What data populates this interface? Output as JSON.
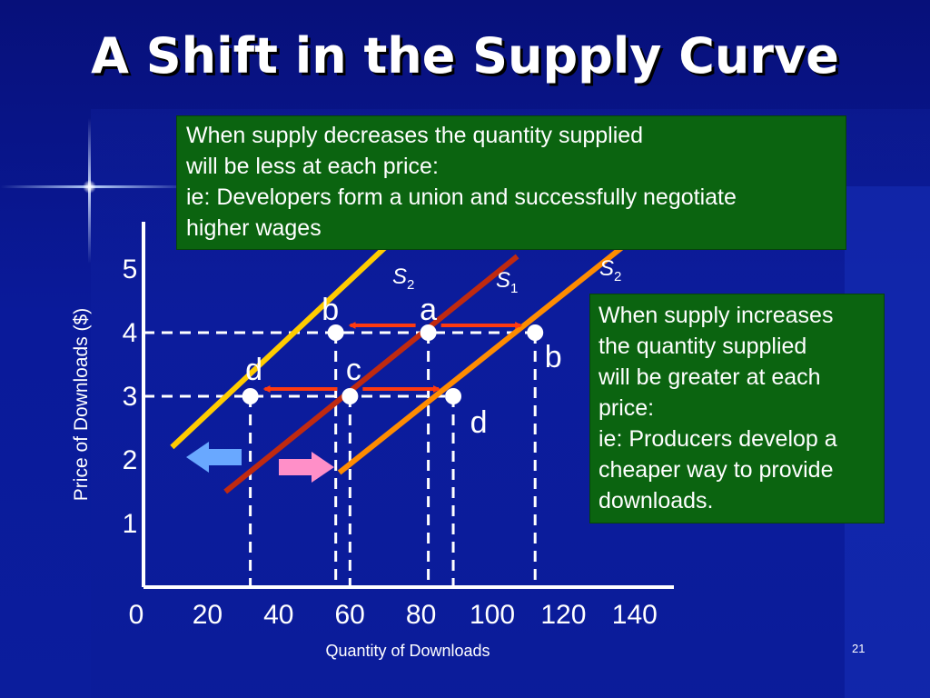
{
  "slide": {
    "title": "A Shift in the Supply Curve",
    "page_number": "21",
    "background_color": "#0a1a9a",
    "title_color": "#ffffff",
    "note_color": "#0b6410"
  },
  "notes": {
    "decrease": [
      "When supply decreases the quantity supplied",
      "will be less at each price:",
      "ie: Developers form a union and successfully negotiate",
      "higher wages"
    ],
    "increase": [
      "When supply increases",
      "the quantity supplied",
      "will be greater at each",
      "price:",
      "ie: Producers develop a",
      "cheaper way to provide",
      "downloads."
    ]
  },
  "chart_data": {
    "type": "line",
    "xlabel": "Quantity of Downloads",
    "ylabel": "Price of Downloads ($)",
    "xlim": [
      0,
      140
    ],
    "ylim": [
      0,
      5
    ],
    "x_ticks": [
      "0",
      "20",
      "40",
      "60",
      "80",
      "100",
      "120",
      "140"
    ],
    "y_ticks": [
      "1",
      "2",
      "3",
      "4",
      "5"
    ],
    "grid": false,
    "series": [
      {
        "name": "S",
        "subscript": "2",
        "color": "#ffcc00",
        "points": [
          {
            "x": 8,
            "y": 2.2
          },
          {
            "x": 69,
            "y": 5.4
          }
        ]
      },
      {
        "name": "S",
        "subscript": "1",
        "color": "#c02a10",
        "points": [
          {
            "x": 23,
            "y": 1.5
          },
          {
            "x": 105,
            "y": 5.2
          }
        ]
      },
      {
        "name": "S",
        "subscript": "2",
        "color": "#ff8c00",
        "points": [
          {
            "x": 55,
            "y": 1.8
          },
          {
            "x": 138,
            "y": 5.5
          }
        ]
      }
    ],
    "markers": [
      {
        "label": "a",
        "x": 80,
        "y": 4,
        "color": "#ffffff"
      },
      {
        "label": "b",
        "x": 54,
        "y": 4,
        "color": "#ffffff"
      },
      {
        "label": "b",
        "x": 110,
        "y": 4,
        "color": "#ffffff"
      },
      {
        "label": "c",
        "x": 58,
        "y": 3,
        "color": "#ffffff"
      },
      {
        "label": "d",
        "x": 30,
        "y": 3,
        "color": "#ffffff"
      },
      {
        "label": "d",
        "x": 87,
        "y": 3,
        "color": "#ffffff"
      }
    ],
    "shift_arrows": [
      {
        "direction": "left",
        "color": "#69a8ff"
      },
      {
        "direction": "right",
        "color": "#ff8fc8"
      }
    ],
    "movement_arrows": [
      {
        "from": [
          80,
          4
        ],
        "to": [
          54,
          4
        ],
        "color": "#ff3a10"
      },
      {
        "from": [
          80,
          4
        ],
        "to": [
          110,
          4
        ],
        "color": "#ff3a10"
      },
      {
        "from": [
          58,
          3
        ],
        "to": [
          30,
          3
        ],
        "color": "#ff3a10"
      },
      {
        "from": [
          58,
          3
        ],
        "to": [
          87,
          3
        ],
        "color": "#ff3a10"
      }
    ]
  }
}
